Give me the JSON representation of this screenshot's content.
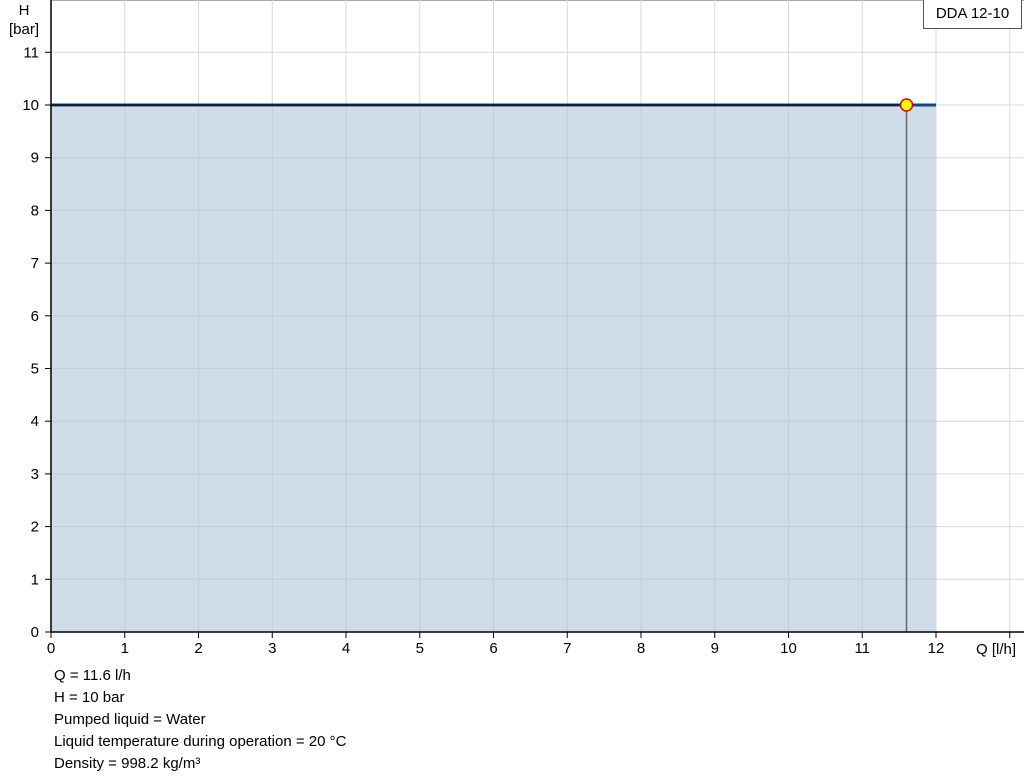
{
  "chart_data": {
    "type": "area",
    "title": "",
    "legend": {
      "label": "DDA 12-10",
      "placement": "top-right"
    },
    "xlabel": "Q [l/h]",
    "ylabel_lines": [
      "H",
      "[bar]"
    ],
    "xlim": [
      0,
      13
    ],
    "ylim": [
      0,
      12
    ],
    "xticks": [
      0,
      1,
      2,
      3,
      4,
      5,
      6,
      7,
      8,
      9,
      10,
      11,
      12
    ],
    "yticks": [
      0,
      1,
      2,
      3,
      4,
      5,
      6,
      7,
      8,
      9,
      10,
      11
    ],
    "grid": true,
    "series": [
      {
        "x": [
          0,
          12
        ],
        "y": [
          10,
          10
        ],
        "color": "#0e4a80",
        "fill": "#d0dce7"
      }
    ],
    "duty_point": {
      "q": 11.6,
      "h": 10,
      "fill": "#ffff00",
      "stroke": "#e00000"
    }
  },
  "info": [
    "Q = 11.6 l/h",
    "H = 10 bar",
    "Pumped liquid = Water",
    "Liquid temperature during operation = 20 °C",
    "Density = 998.2 kg/m³"
  ]
}
